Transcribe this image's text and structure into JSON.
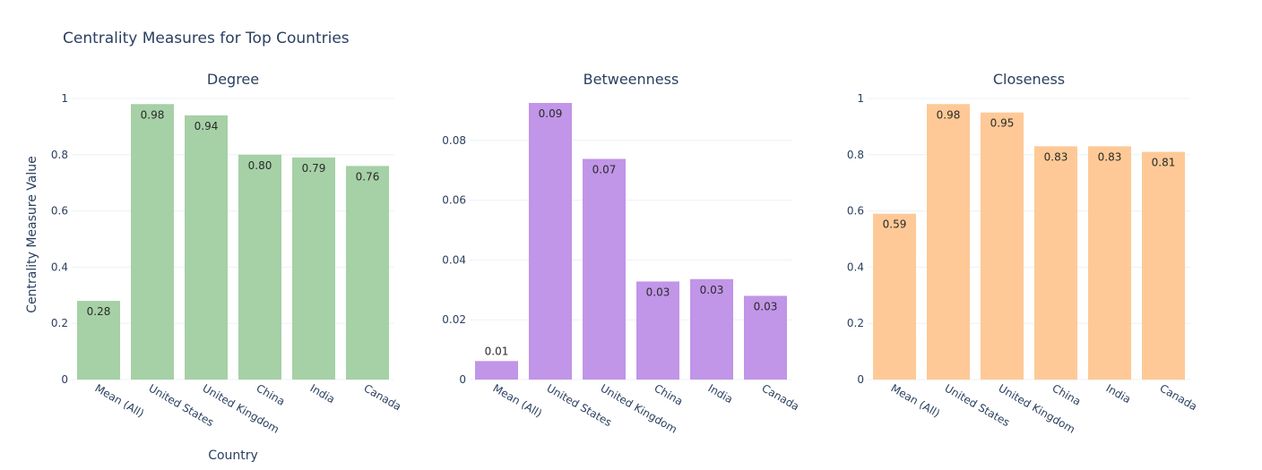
{
  "title": "Centrality Measures for Top Countries",
  "chart_data": {
    "type": "bar",
    "title": "Centrality Measures for Top Countries",
    "xlabel": "Country",
    "ylabel": "Centrality Measure Value",
    "categories": [
      "Mean (All)",
      "United States",
      "United Kingdom",
      "China",
      "India",
      "Canada"
    ],
    "grid": true,
    "subplots": [
      {
        "name": "Degree",
        "color": "#a6d0a6",
        "values": [
          0.28,
          0.98,
          0.94,
          0.8,
          0.79,
          0.76
        ],
        "labels": [
          "0.28",
          "0.98",
          "0.94",
          "0.80",
          "0.79",
          "0.76"
        ],
        "ylim": [
          0,
          1
        ],
        "ticks": [
          0,
          0.2,
          0.4,
          0.6,
          0.8,
          1
        ],
        "tick_labels": [
          "0",
          "0.2",
          "0.4",
          "0.6",
          "0.8",
          "1"
        ]
      },
      {
        "name": "Betweenness",
        "color": "#c195e7",
        "values": [
          0.0062,
          0.0925,
          0.0738,
          0.0328,
          0.0336,
          0.028
        ],
        "labels": [
          "0.01",
          "0.09",
          "0.07",
          "0.03",
          "0.03",
          "0.03"
        ],
        "ylim": [
          0,
          0.094
        ],
        "ticks": [
          0,
          0.02,
          0.04,
          0.06,
          0.08
        ],
        "tick_labels": [
          "0",
          "0.02",
          "0.04",
          "0.06",
          "0.08"
        ]
      },
      {
        "name": "Closeness",
        "color": "#fec996",
        "values": [
          0.59,
          0.98,
          0.95,
          0.83,
          0.83,
          0.81
        ],
        "labels": [
          "0.59",
          "0.98",
          "0.95",
          "0.83",
          "0.83",
          "0.81"
        ],
        "ylim": [
          0,
          1
        ],
        "ticks": [
          0,
          0.2,
          0.4,
          0.6,
          0.8,
          1
        ],
        "tick_labels": [
          "0",
          "0.2",
          "0.4",
          "0.6",
          "0.8",
          "1"
        ]
      }
    ]
  }
}
